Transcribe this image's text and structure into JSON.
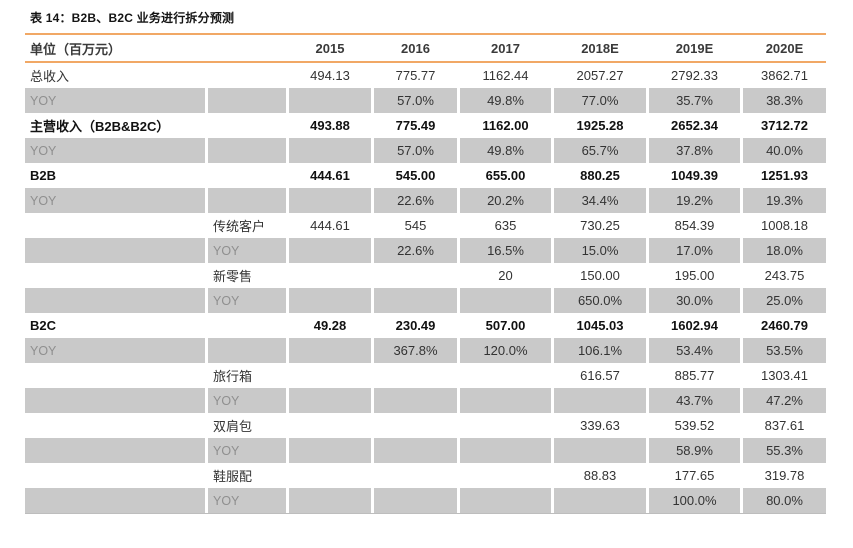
{
  "title": "表 14：B2B、B2C 业务进行拆分预测",
  "colors": {
    "accent_line": "#F1A865",
    "stripe_row": "#C9C9C9",
    "yoy_label_text": "#8F8F8F",
    "body_text": "#333333"
  },
  "table": {
    "header": {
      "unit_label": "单位（百万元）",
      "years": [
        "2015",
        "2016",
        "2017",
        "2018E",
        "2019E",
        "2020E"
      ]
    },
    "rows": [
      {
        "label": "总收入",
        "indent": false,
        "bold": false,
        "yoy": false,
        "values": [
          "494.13",
          "775.77",
          "1162.44",
          "2057.27",
          "2792.33",
          "3862.71"
        ]
      },
      {
        "label": "YOY",
        "indent": false,
        "bold": false,
        "yoy": true,
        "values": [
          "",
          "57.0%",
          "49.8%",
          "77.0%",
          "35.7%",
          "38.3%"
        ]
      },
      {
        "label": "主营收入（B2B&B2C）",
        "indent": false,
        "bold": true,
        "yoy": false,
        "values": [
          "493.88",
          "775.49",
          "1162.00",
          "1925.28",
          "2652.34",
          "3712.72"
        ]
      },
      {
        "label": "YOY",
        "indent": false,
        "bold": false,
        "yoy": true,
        "values": [
          "",
          "57.0%",
          "49.8%",
          "65.7%",
          "37.8%",
          "40.0%"
        ]
      },
      {
        "label": "B2B",
        "indent": false,
        "bold": true,
        "yoy": false,
        "values": [
          "444.61",
          "545.00",
          "655.00",
          "880.25",
          "1049.39",
          "1251.93"
        ]
      },
      {
        "label": "YOY",
        "indent": false,
        "bold": false,
        "yoy": true,
        "values": [
          "",
          "22.6%",
          "20.2%",
          "34.4%",
          "19.2%",
          "19.3%"
        ]
      },
      {
        "label": "传统客户",
        "indent": true,
        "bold": false,
        "yoy": false,
        "values": [
          "444.61",
          "545",
          "635",
          "730.25",
          "854.39",
          "1008.18"
        ]
      },
      {
        "label": "YOY",
        "indent": true,
        "bold": false,
        "yoy": true,
        "values": [
          "",
          "22.6%",
          "16.5%",
          "15.0%",
          "17.0%",
          "18.0%"
        ]
      },
      {
        "label": "新零售",
        "indent": true,
        "bold": false,
        "yoy": false,
        "values": [
          "",
          "",
          "20",
          "150.00",
          "195.00",
          "243.75"
        ]
      },
      {
        "label": "YOY",
        "indent": true,
        "bold": false,
        "yoy": true,
        "values": [
          "",
          "",
          "",
          "650.0%",
          "30.0%",
          "25.0%"
        ]
      },
      {
        "label": "B2C",
        "indent": false,
        "bold": true,
        "yoy": false,
        "values": [
          "49.28",
          "230.49",
          "507.00",
          "1045.03",
          "1602.94",
          "2460.79"
        ]
      },
      {
        "label": "YOY",
        "indent": false,
        "bold": false,
        "yoy": true,
        "values": [
          "",
          "367.8%",
          "120.0%",
          "106.1%",
          "53.4%",
          "53.5%"
        ]
      },
      {
        "label": "旅行箱",
        "indent": true,
        "bold": false,
        "yoy": false,
        "values": [
          "",
          "",
          "",
          "616.57",
          "885.77",
          "1303.41"
        ]
      },
      {
        "label": "YOY",
        "indent": true,
        "bold": false,
        "yoy": true,
        "values": [
          "",
          "",
          "",
          "",
          "43.7%",
          "47.2%"
        ]
      },
      {
        "label": "双肩包",
        "indent": true,
        "bold": false,
        "yoy": false,
        "values": [
          "",
          "",
          "",
          "339.63",
          "539.52",
          "837.61"
        ]
      },
      {
        "label": "YOY",
        "indent": true,
        "bold": false,
        "yoy": true,
        "values": [
          "",
          "",
          "",
          "",
          "58.9%",
          "55.3%"
        ]
      },
      {
        "label": "鞋服配",
        "indent": true,
        "bold": false,
        "yoy": false,
        "values": [
          "",
          "",
          "",
          "88.83",
          "177.65",
          "319.78"
        ]
      },
      {
        "label": "YOY",
        "indent": true,
        "bold": false,
        "yoy": true,
        "values": [
          "",
          "",
          "",
          "",
          "100.0%",
          "80.0%"
        ]
      }
    ]
  }
}
